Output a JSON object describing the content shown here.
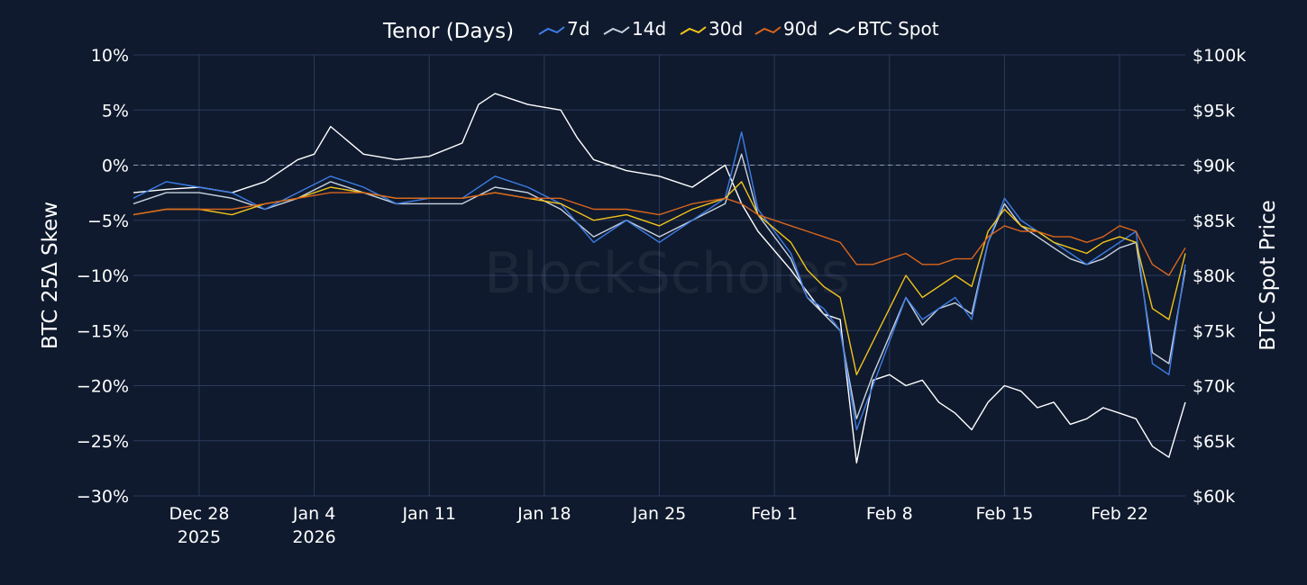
{
  "legend": {
    "title": "Tenor (Days)",
    "items": [
      {
        "label": "7d",
        "color": "#3d7de6"
      },
      {
        "label": "14d",
        "color": "#c9d2df"
      },
      {
        "label": "30d",
        "color": "#f2c31b"
      },
      {
        "label": "90d",
        "color": "#d9651c"
      },
      {
        "label": "BTC Spot",
        "color": "#ffffff"
      }
    ]
  },
  "watermark": "BlockScholes",
  "chart_data": {
    "type": "line",
    "xlabel": "",
    "ylabel": "BTC 25Δ Skew",
    "y2label": "BTC Spot Price",
    "x_range": [
      "2025-12-24",
      "2026-02-26"
    ],
    "ylim": [
      -30,
      10
    ],
    "y2lim": [
      60000,
      100000
    ],
    "grid": true,
    "legend_position": "top-center",
    "x_ticks": [
      {
        "date": "2025-12-28",
        "line1": "Dec 28",
        "line2": "2025"
      },
      {
        "date": "2026-01-04",
        "line1": "Jan 4",
        "line2": "2026"
      },
      {
        "date": "2026-01-11",
        "line1": "Jan 11",
        "line2": ""
      },
      {
        "date": "2026-01-18",
        "line1": "Jan 18",
        "line2": ""
      },
      {
        "date": "2026-01-25",
        "line1": "Jan 25",
        "line2": ""
      },
      {
        "date": "2026-02-01",
        "line1": "Feb 1",
        "line2": ""
      },
      {
        "date": "2026-02-08",
        "line1": "Feb 8",
        "line2": ""
      },
      {
        "date": "2026-02-15",
        "line1": "Feb 15",
        "line2": ""
      },
      {
        "date": "2026-02-22",
        "line1": "Feb 22",
        "line2": ""
      }
    ],
    "y_ticks": [
      {
        "value": 10,
        "label": "10%"
      },
      {
        "value": 5,
        "label": "5%"
      },
      {
        "value": 0,
        "label": "0%"
      },
      {
        "value": -5,
        "label": "−5%"
      },
      {
        "value": -10,
        "label": "−10%"
      },
      {
        "value": -15,
        "label": "−15%"
      },
      {
        "value": -20,
        "label": "−20%"
      },
      {
        "value": -25,
        "label": "−25%"
      },
      {
        "value": -30,
        "label": "−30%"
      }
    ],
    "y2_ticks": [
      {
        "value": 100000,
        "label": "$100k"
      },
      {
        "value": 95000,
        "label": "$95k"
      },
      {
        "value": 90000,
        "label": "$90k"
      },
      {
        "value": 85000,
        "label": "$85k"
      },
      {
        "value": 80000,
        "label": "$80k"
      },
      {
        "value": 75000,
        "label": "$75k"
      },
      {
        "value": 70000,
        "label": "$70k"
      },
      {
        "value": 65000,
        "label": "$65k"
      },
      {
        "value": 60000,
        "label": "$60k"
      }
    ],
    "zero_line": 0,
    "series": [
      {
        "name": "7d",
        "axis": "left",
        "x": [
          "2025-12-24",
          "2025-12-26",
          "2025-12-28",
          "2025-12-30",
          "2026-01-01",
          "2026-01-03",
          "2026-01-05",
          "2026-01-07",
          "2026-01-09",
          "2026-01-11",
          "2026-01-13",
          "2026-01-15",
          "2026-01-17",
          "2026-01-19",
          "2026-01-21",
          "2026-01-23",
          "2026-01-25",
          "2026-01-27",
          "2026-01-29",
          "2026-01-30",
          "2026-01-31",
          "2026-02-02",
          "2026-02-03",
          "2026-02-04",
          "2026-02-05",
          "2026-02-06",
          "2026-02-07",
          "2026-02-08",
          "2026-02-09",
          "2026-02-10",
          "2026-02-11",
          "2026-02-12",
          "2026-02-13",
          "2026-02-14",
          "2026-02-15",
          "2026-02-16",
          "2026-02-17",
          "2026-02-18",
          "2026-02-19",
          "2026-02-20",
          "2026-02-21",
          "2026-02-22",
          "2026-02-23",
          "2026-02-24",
          "2026-02-25",
          "2026-02-26"
        ],
        "y": [
          -3,
          -1.5,
          -2,
          -2.5,
          -4,
          -2.5,
          -1,
          -2,
          -3.5,
          -3,
          -3,
          -1,
          -2,
          -3.5,
          -7,
          -5,
          -7,
          -5,
          -3,
          3,
          -4,
          -8,
          -12,
          -13,
          -15,
          -24,
          -20,
          -16,
          -12,
          -14,
          -13,
          -12,
          -14,
          -7,
          -3,
          -5,
          -6,
          -7,
          -8,
          -9,
          -8,
          -7,
          -6,
          -18,
          -19,
          -9
        ]
      },
      {
        "name": "14d",
        "axis": "left",
        "x": [
          "2025-12-24",
          "2025-12-26",
          "2025-12-28",
          "2025-12-30",
          "2026-01-01",
          "2026-01-03",
          "2026-01-05",
          "2026-01-07",
          "2026-01-09",
          "2026-01-11",
          "2026-01-13",
          "2026-01-15",
          "2026-01-17",
          "2026-01-19",
          "2026-01-21",
          "2026-01-23",
          "2026-01-25",
          "2026-01-27",
          "2026-01-29",
          "2026-01-30",
          "2026-01-31",
          "2026-02-02",
          "2026-02-03",
          "2026-02-04",
          "2026-02-05",
          "2026-02-06",
          "2026-02-07",
          "2026-02-08",
          "2026-02-09",
          "2026-02-10",
          "2026-02-11",
          "2026-02-12",
          "2026-02-13",
          "2026-02-14",
          "2026-02-15",
          "2026-02-16",
          "2026-02-17",
          "2026-02-18",
          "2026-02-19",
          "2026-02-20",
          "2026-02-21",
          "2026-02-22",
          "2026-02-23",
          "2026-02-24",
          "2026-02-25",
          "2026-02-26"
        ],
        "y": [
          -3.5,
          -2.5,
          -2.5,
          -3,
          -4,
          -3,
          -1.5,
          -2.5,
          -3.5,
          -3.5,
          -3.5,
          -2,
          -2.5,
          -4,
          -6.5,
          -5,
          -6.5,
          -5,
          -3.5,
          1,
          -4.5,
          -8.5,
          -12,
          -13.5,
          -15,
          -23,
          -19,
          -15.5,
          -12,
          -14.5,
          -13,
          -12.5,
          -13.5,
          -7,
          -3.5,
          -5.5,
          -6.5,
          -7.5,
          -8.5,
          -9,
          -8.5,
          -7.5,
          -7,
          -17,
          -18,
          -9.5
        ]
      },
      {
        "name": "30d",
        "axis": "left",
        "x": [
          "2025-12-24",
          "2025-12-26",
          "2025-12-28",
          "2025-12-30",
          "2026-01-01",
          "2026-01-03",
          "2026-01-05",
          "2026-01-07",
          "2026-01-09",
          "2026-01-11",
          "2026-01-13",
          "2026-01-15",
          "2026-01-17",
          "2026-01-19",
          "2026-01-21",
          "2026-01-23",
          "2026-01-25",
          "2026-01-27",
          "2026-01-29",
          "2026-01-30",
          "2026-01-31",
          "2026-02-02",
          "2026-02-03",
          "2026-02-04",
          "2026-02-05",
          "2026-02-06",
          "2026-02-07",
          "2026-02-08",
          "2026-02-09",
          "2026-02-10",
          "2026-02-11",
          "2026-02-12",
          "2026-02-13",
          "2026-02-14",
          "2026-02-15",
          "2026-02-16",
          "2026-02-17",
          "2026-02-18",
          "2026-02-19",
          "2026-02-20",
          "2026-02-21",
          "2026-02-22",
          "2026-02-23",
          "2026-02-24",
          "2026-02-25",
          "2026-02-26"
        ],
        "y": [
          -4.5,
          -4,
          -4,
          -4.5,
          -3.5,
          -3,
          -2,
          -2.5,
          -3,
          -3,
          -3,
          -2.5,
          -3,
          -3.5,
          -5,
          -4.5,
          -5.5,
          -4,
          -3,
          -1.5,
          -4.5,
          -7,
          -9.5,
          -11,
          -12,
          -19,
          -16,
          -13,
          -10,
          -12,
          -11,
          -10,
          -11,
          -6,
          -4,
          -5.5,
          -6,
          -7,
          -7.5,
          -8,
          -7,
          -6.5,
          -7,
          -13,
          -14,
          -8
        ]
      },
      {
        "name": "90d",
        "axis": "left",
        "x": [
          "2025-12-24",
          "2025-12-26",
          "2025-12-28",
          "2025-12-30",
          "2026-01-01",
          "2026-01-03",
          "2026-01-05",
          "2026-01-07",
          "2026-01-09",
          "2026-01-11",
          "2026-01-13",
          "2026-01-15",
          "2026-01-17",
          "2026-01-19",
          "2026-01-21",
          "2026-01-23",
          "2026-01-25",
          "2026-01-27",
          "2026-01-29",
          "2026-01-30",
          "2026-01-31",
          "2026-02-02",
          "2026-02-03",
          "2026-02-04",
          "2026-02-05",
          "2026-02-06",
          "2026-02-07",
          "2026-02-08",
          "2026-02-09",
          "2026-02-10",
          "2026-02-11",
          "2026-02-12",
          "2026-02-13",
          "2026-02-14",
          "2026-02-15",
          "2026-02-16",
          "2026-02-17",
          "2026-02-18",
          "2026-02-19",
          "2026-02-20",
          "2026-02-21",
          "2026-02-22",
          "2026-02-23",
          "2026-02-24",
          "2026-02-25",
          "2026-02-26"
        ],
        "y": [
          -4.5,
          -4,
          -4,
          -4,
          -3.5,
          -3,
          -2.5,
          -2.5,
          -3,
          -3,
          -3,
          -2.5,
          -3,
          -3,
          -4,
          -4,
          -4.5,
          -3.5,
          -3,
          -3.5,
          -4.5,
          -5.5,
          -6,
          -6.5,
          -7,
          -9,
          -9,
          -8.5,
          -8,
          -9,
          -9,
          -8.5,
          -8.5,
          -6.5,
          -5.5,
          -6,
          -6,
          -6.5,
          -6.5,
          -7,
          -6.5,
          -5.5,
          -6,
          -9,
          -10,
          -7.5
        ]
      },
      {
        "name": "BTC Spot",
        "axis": "right",
        "x": [
          "2025-12-24",
          "2025-12-26",
          "2025-12-28",
          "2025-12-30",
          "2026-01-01",
          "2026-01-03",
          "2026-01-04",
          "2026-01-05",
          "2026-01-07",
          "2026-01-09",
          "2026-01-11",
          "2026-01-13",
          "2026-01-14",
          "2026-01-15",
          "2026-01-17",
          "2026-01-19",
          "2026-01-20",
          "2026-01-21",
          "2026-01-23",
          "2026-01-25",
          "2026-01-27",
          "2026-01-29",
          "2026-01-30",
          "2026-01-31",
          "2026-02-02",
          "2026-02-03",
          "2026-02-04",
          "2026-02-05",
          "2026-02-06",
          "2026-02-07",
          "2026-02-08",
          "2026-02-09",
          "2026-02-10",
          "2026-02-11",
          "2026-02-12",
          "2026-02-13",
          "2026-02-14",
          "2026-02-15",
          "2026-02-16",
          "2026-02-17",
          "2026-02-18",
          "2026-02-19",
          "2026-02-20",
          "2026-02-21",
          "2026-02-22",
          "2026-02-23",
          "2026-02-24",
          "2026-02-25",
          "2026-02-26"
        ],
        "y": [
          87500,
          87800,
          88000,
          87500,
          88500,
          90500,
          91000,
          93500,
          91000,
          90500,
          90800,
          92000,
          95500,
          96500,
          95500,
          95000,
          92500,
          90500,
          89500,
          89000,
          88000,
          90000,
          86500,
          84000,
          80500,
          78500,
          76500,
          76000,
          63000,
          70500,
          71000,
          70000,
          70500,
          68500,
          67500,
          66000,
          68500,
          70000,
          69500,
          68000,
          68500,
          66500,
          67000,
          68000,
          67500,
          67000,
          64500,
          63500,
          68500
        ]
      }
    ]
  }
}
